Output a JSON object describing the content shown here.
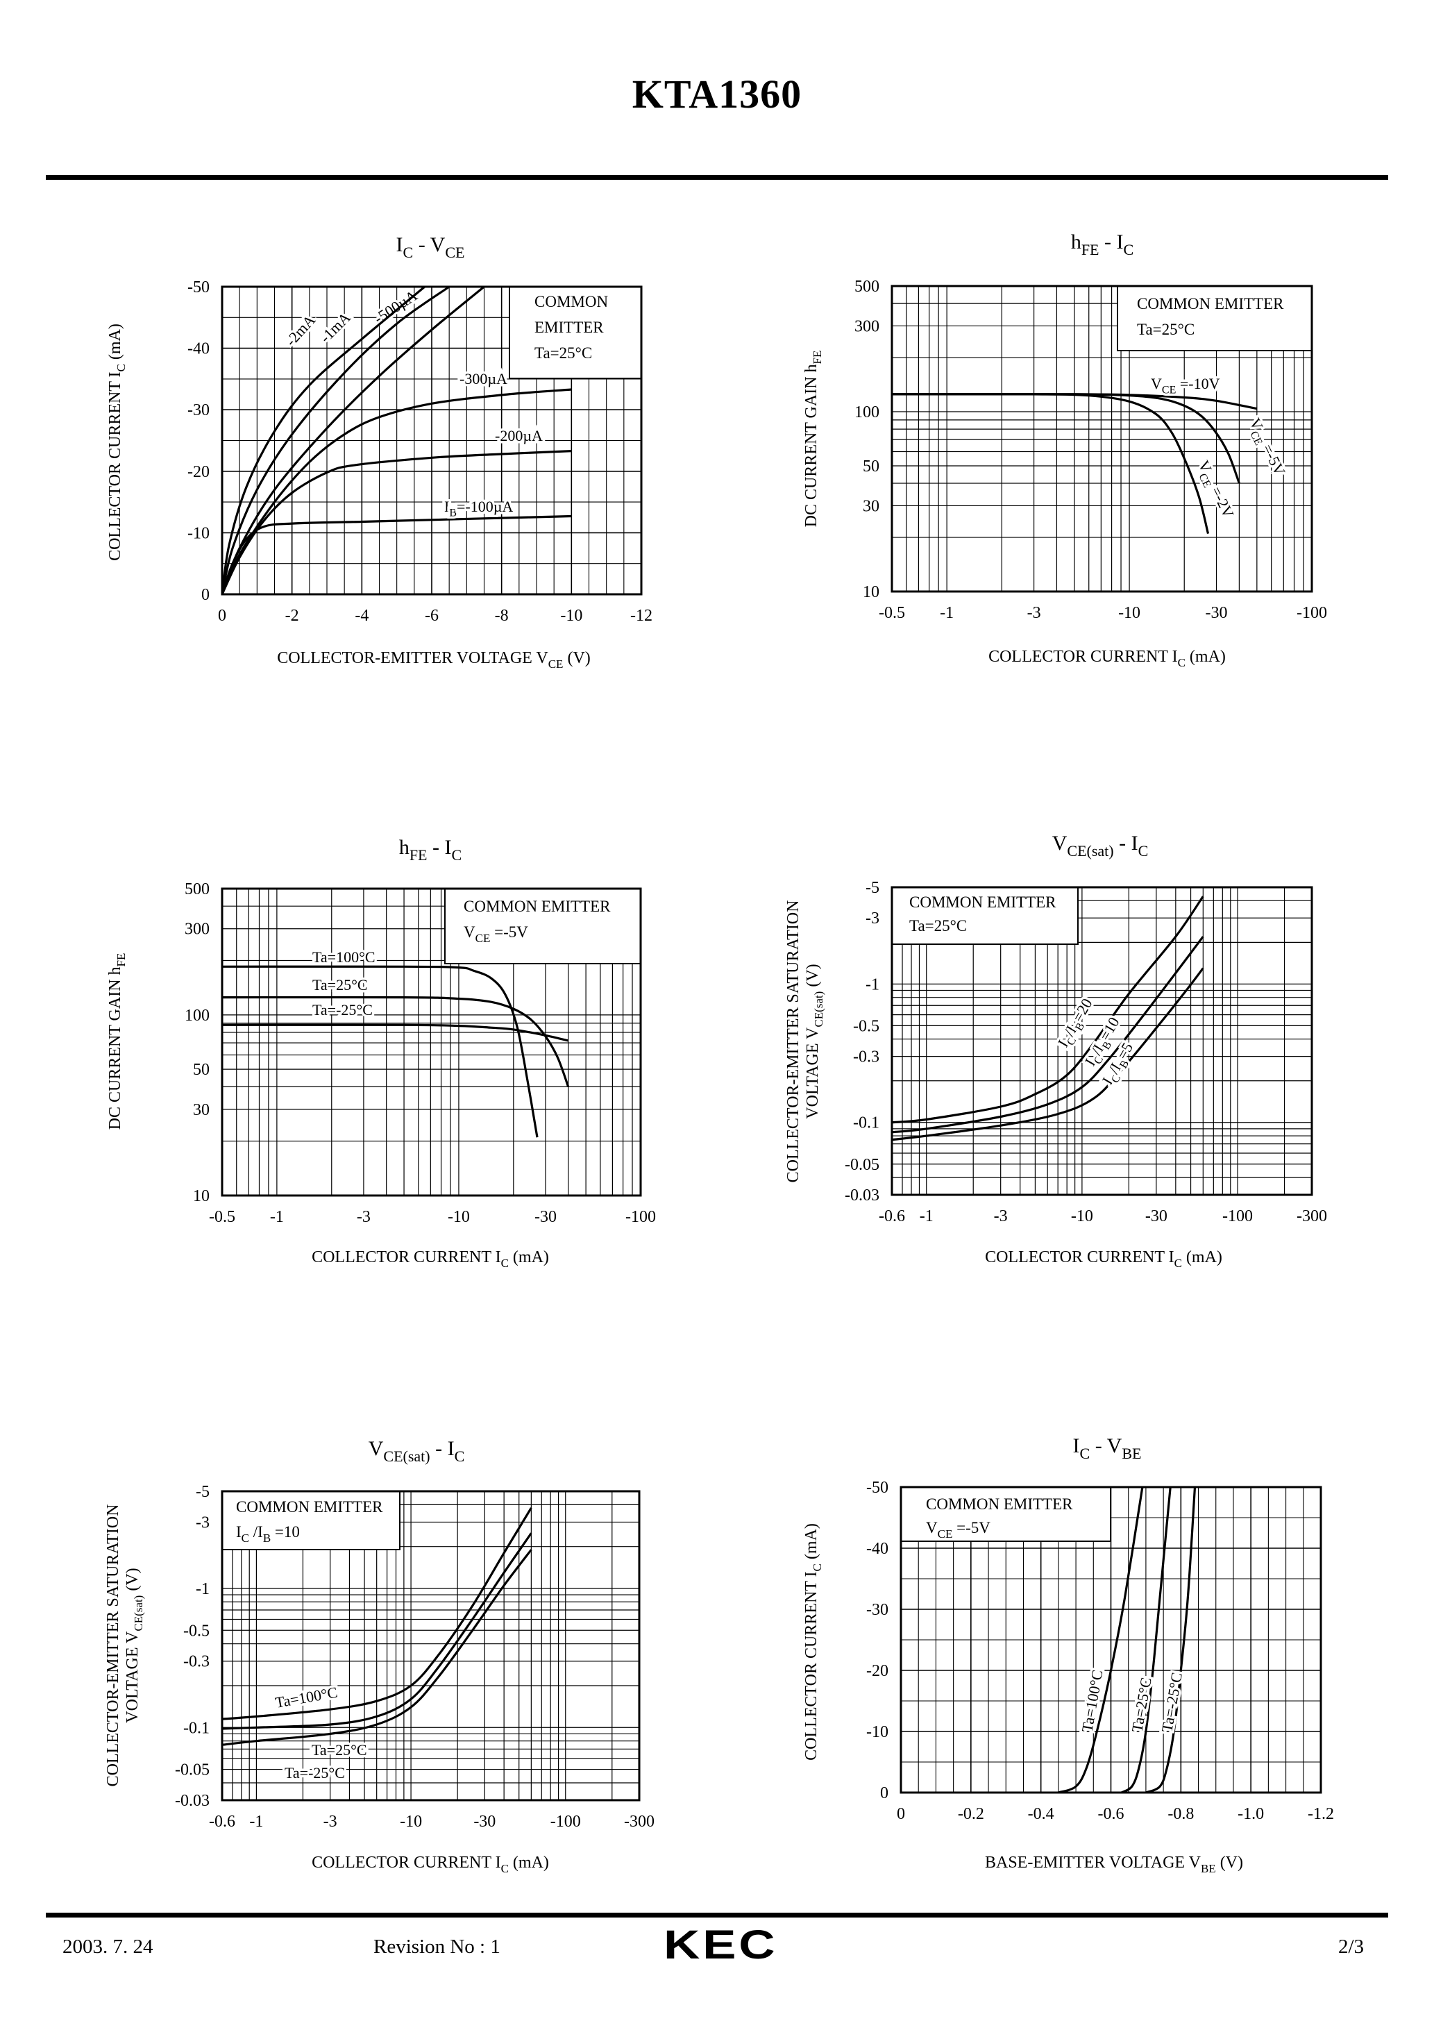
{
  "header": {
    "title": "KTA1360"
  },
  "footer": {
    "date": "2003. 7. 24",
    "revision": "Revision No : 1",
    "logo": "KEC",
    "page": "2/3"
  },
  "chart_data": [
    {
      "id": "c1",
      "type": "line",
      "title": "I_C - V_CE",
      "title_main": "I",
      "title_sub": "C",
      "title_mid": "  -  V",
      "title_sub2": "CE",
      "xlabel": "COLLECTOR-EMITTER VOLTAGE V",
      "xlabel_sub": "CE",
      "xlabel_unit": " (V)",
      "ylabel": "COLLECTOR CURRENT I",
      "ylabel_sub": "C",
      "ylabel_unit": "  (mA)",
      "xscale": "linear",
      "yscale": "linear",
      "xlim": [
        0,
        -12
      ],
      "ylim": [
        0,
        -50
      ],
      "xticks": [
        "0",
        "-2",
        "-4",
        "-6",
        "-8",
        "-10",
        "-12"
      ],
      "xtick_values": [
        0,
        -2,
        -4,
        -6,
        -8,
        -10,
        -12
      ],
      "yticks": [
        "0",
        "-10",
        "-20",
        "-30",
        "-40",
        "-50"
      ],
      "ytick_values": [
        0,
        -10,
        -20,
        -30,
        -40,
        -50
      ],
      "box_lines": [
        "COMMON",
        "EMITTER",
        "Ta=25°C"
      ],
      "series": [
        {
          "name": "IB=-100µA",
          "label": "I",
          "label_sub": "B",
          "label_rest": "=-100µA",
          "x": [
            0,
            -0.3,
            -0.7,
            -1.2,
            -2,
            -4,
            -6,
            -8,
            -10
          ],
          "y": [
            0,
            -5,
            -9,
            -11,
            -11.5,
            -11.8,
            -12.1,
            -12.4,
            -12.7
          ]
        },
        {
          "name": "-200µA",
          "label": "-200µA",
          "x": [
            0,
            -0.5,
            -1.2,
            -2,
            -3,
            -3.8,
            -6,
            -8,
            -10
          ],
          "y": [
            0,
            -6,
            -12,
            -16.5,
            -19.8,
            -21,
            -22.2,
            -22.8,
            -23.3
          ]
        },
        {
          "name": "-300µA",
          "label": "-300µA",
          "x": [
            0,
            -0.5,
            -1.5,
            -2.5,
            -3.5,
            -4.5,
            -6,
            -8,
            -10
          ],
          "y": [
            0,
            -6.5,
            -15,
            -21.5,
            -26,
            -28.8,
            -31,
            -32.4,
            -33.3
          ]
        },
        {
          "name": "-500µA",
          "label": "-500µA",
          "x": [
            0,
            -0.5,
            -1.5,
            -3,
            -4.5,
            -6,
            -7.5
          ],
          "y": [
            0,
            -7.5,
            -17,
            -27,
            -35.5,
            -43,
            -50
          ]
        },
        {
          "name": "-1mA",
          "label": "-1mA",
          "x": [
            0,
            -0.3,
            -1,
            -2,
            -3.5,
            -5,
            -6.5
          ],
          "y": [
            0,
            -7.5,
            -17,
            -26,
            -36,
            -44,
            -50
          ]
        },
        {
          "name": "-2mA",
          "label": "-2mA",
          "x": [
            0,
            -0.2,
            -0.7,
            -1.5,
            -2.5,
            -4,
            -5.8
          ],
          "y": [
            0,
            -8,
            -17.5,
            -26.5,
            -34,
            -41.5,
            -50
          ]
        }
      ]
    },
    {
      "id": "c2",
      "type": "line",
      "title": "hFE - IC",
      "title_main": "h",
      "title_sub": "FE",
      "title_mid": "  -  I",
      "title_sub2": "C",
      "xlabel": "COLLECTOR CURRENT I",
      "xlabel_sub": "C",
      "xlabel_unit": "  (mA)",
      "ylabel": "DC CURRENT GAIN h",
      "ylabel_sub": "FE",
      "ylabel_unit": "",
      "xscale": "log",
      "yscale": "log",
      "xlim": [
        0.5,
        100
      ],
      "ylim": [
        10,
        500
      ],
      "xticks": [
        "-0.5",
        "-1",
        "-3",
        "-10",
        "-30",
        "-100"
      ],
      "xtick_values": [
        0.5,
        1,
        3,
        10,
        30,
        100
      ],
      "yticks": [
        "10",
        "30",
        "50",
        "100",
        "300",
        "500"
      ],
      "ytick_values": [
        10,
        30,
        50,
        100,
        300,
        500
      ],
      "box_lines": [
        "COMMON EMITTER",
        "Ta=25°C"
      ],
      "series": [
        {
          "name": "VCE=-10V",
          "label": "V",
          "label_sub": "CE",
          "label_rest": " =-10V",
          "x": [
            0.5,
            5,
            10,
            20,
            30,
            50
          ],
          "y": [
            125,
            125,
            124,
            120,
            115,
            104
          ]
        },
        {
          "name": "VCE=-5V",
          "label": "V",
          "label_sub": "CE",
          "label_rest": " =-5V",
          "x": [
            0.5,
            5,
            10,
            15,
            20,
            25,
            30,
            35,
            40
          ],
          "y": [
            125,
            125,
            123,
            118,
            108,
            94,
            76,
            58,
            40
          ]
        },
        {
          "name": "VCE=-2V",
          "label": "V",
          "label_sub": "CE",
          "label_rest": " =-2V",
          "x": [
            0.5,
            3,
            6,
            10,
            14,
            17,
            20,
            24,
            27
          ],
          "y": [
            125,
            125,
            123,
            114,
            97,
            77,
            55,
            34,
            21
          ]
        }
      ]
    },
    {
      "id": "c3",
      "type": "line",
      "title": "hFE - IC",
      "title_main": "h",
      "title_sub": "FE",
      "title_mid": "  -  I",
      "title_sub2": "C",
      "xlabel": "COLLECTOR CURRENT I",
      "xlabel_sub": "C",
      "xlabel_unit": "  (mA)",
      "ylabel": "DC CURRENT GAIN h",
      "ylabel_sub": "FE",
      "ylabel_unit": "",
      "xscale": "log",
      "yscale": "log",
      "xlim": [
        0.5,
        100
      ],
      "ylim": [
        10,
        500
      ],
      "xticks": [
        "-0.5",
        "-1",
        "-3",
        "-10",
        "-30",
        "-100"
      ],
      "xtick_values": [
        0.5,
        1,
        3,
        10,
        30,
        100
      ],
      "yticks": [
        "10",
        "30",
        "50",
        "100",
        "300",
        "500"
      ],
      "ytick_values": [
        10,
        30,
        50,
        100,
        300,
        500
      ],
      "box_lines": [
        "COMMON EMITTER",
        "V_CE=-5V"
      ],
      "box_v": "V",
      "box_v_sub": "CE",
      "box_v_rest": " =-5V",
      "series": [
        {
          "name": "Ta=100°C",
          "label": "Ta=100°C",
          "x": [
            0.5,
            5,
            10,
            12,
            15,
            18,
            21,
            24,
            27
          ],
          "y": [
            185,
            185,
            183,
            176,
            160,
            130,
            85,
            42,
            21
          ]
        },
        {
          "name": "Ta=25°C",
          "label": "Ta=25°C",
          "x": [
            0.5,
            5,
            10,
            15,
            20,
            25,
            30,
            35,
            40
          ],
          "y": [
            125,
            125,
            123,
            118,
            108,
            94,
            76,
            58,
            40
          ]
        },
        {
          "name": "Ta=-25°C",
          "label": "Ta=-25°C",
          "x": [
            0.5,
            5,
            10,
            15,
            20,
            30,
            40
          ],
          "y": [
            88,
            88,
            87,
            85,
            83,
            77,
            72
          ]
        }
      ]
    },
    {
      "id": "c4",
      "type": "line",
      "title": "VCE(sat) - IC",
      "title_main": "V",
      "title_sub": "CE(sat)",
      "title_mid": "  -  I",
      "title_sub2": "C",
      "xlabel": "COLLECTOR CURRENT I",
      "xlabel_sub": "C",
      "xlabel_unit": "  (mA)",
      "ylabel": "COLLECTOR-EMITTER SATURATION",
      "ylabel2": "VOLTAGE V",
      "ylabel_sub": "CE(sat)",
      "ylabel_unit": "  (V)",
      "xscale": "log",
      "yscale": "log",
      "xlim": [
        0.6,
        300
      ],
      "ylim": [
        0.03,
        5
      ],
      "xticks": [
        "-0.6",
        "-1",
        "-3",
        "-10",
        "-30",
        "-100",
        "-300"
      ],
      "xtick_values": [
        0.6,
        1,
        3,
        10,
        30,
        100,
        300
      ],
      "yticks": [
        "-0.03",
        "-0.05",
        "-0.1",
        "-0.3",
        "-0.5",
        "-1",
        "-3",
        "-5"
      ],
      "ytick_values": [
        0.03,
        0.05,
        0.1,
        0.3,
        0.5,
        1,
        3,
        5
      ],
      "box_lines": [
        "COMMON EMITTER",
        "Ta=25°C"
      ],
      "series": [
        {
          "name": "IC/IB=20",
          "label": "I",
          "label_sub": "C",
          "label_rest": "/I",
          "label_sub2": "B",
          "label_rest2": "=20",
          "x": [
            0.6,
            1,
            3,
            5,
            8,
            12,
            20,
            40,
            60
          ],
          "y": [
            0.1,
            0.105,
            0.13,
            0.16,
            0.22,
            0.38,
            0.85,
            2.2,
            4.3
          ]
        },
        {
          "name": "IC/IB=10",
          "label": "I",
          "label_sub": "C",
          "label_rest": "/I",
          "label_sub2": "B",
          "label_rest2": "=10",
          "x": [
            0.6,
            1,
            3,
            6,
            10,
            15,
            25,
            40,
            60
          ],
          "y": [
            0.085,
            0.09,
            0.11,
            0.135,
            0.18,
            0.29,
            0.6,
            1.2,
            2.2
          ]
        },
        {
          "name": "IC/IB=5",
          "label": "I",
          "label_sub": "C",
          "label_rest": "/I",
          "label_sub2": "B",
          "label_rest2": "=5",
          "x": [
            0.6,
            1,
            3,
            7,
            12,
            18,
            30,
            45,
            60
          ],
          "y": [
            0.075,
            0.08,
            0.095,
            0.115,
            0.15,
            0.24,
            0.48,
            0.85,
            1.3
          ]
        }
      ]
    },
    {
      "id": "c5",
      "type": "line",
      "title": "VCE(sat) - IC",
      "title_main": "V",
      "title_sub": "CE(sat)",
      "title_mid": "  -  I",
      "title_sub2": "C",
      "xlabel": "COLLECTOR CURRENT I",
      "xlabel_sub": "C",
      "xlabel_unit": "  (mA)",
      "ylabel": "COLLECTOR-EMITTER SATURATION",
      "ylabel2": "VOLTAGE V",
      "ylabel_sub": "CE(sat)",
      "ylabel_unit": "  (V)",
      "xscale": "log",
      "yscale": "log",
      "xlim": [
        0.6,
        300
      ],
      "ylim": [
        0.03,
        5
      ],
      "xticks": [
        "-0.6",
        "-1",
        "-3",
        "-10",
        "-30",
        "-100",
        "-300"
      ],
      "xtick_values": [
        0.6,
        1,
        3,
        10,
        30,
        100,
        300
      ],
      "yticks": [
        "-0.03",
        "-0.05",
        "-0.1",
        "-0.3",
        "-0.5",
        "-1",
        "-3",
        "-5"
      ],
      "ytick_values": [
        0.03,
        0.05,
        0.1,
        0.3,
        0.5,
        1,
        3,
        5
      ],
      "box_lines": [
        "COMMON EMITTER",
        "IC/IB=10"
      ],
      "box_i": "I",
      "box_i_sub": "C",
      "box_i_rest": " /I",
      "box_i_sub2": "B",
      "box_i_rest2": " =10",
      "series": [
        {
          "name": "Ta=100°C",
          "label": "Ta=100°C",
          "x": [
            0.6,
            1,
            3,
            6,
            10,
            15,
            25,
            40,
            60
          ],
          "y": [
            0.115,
            0.12,
            0.135,
            0.155,
            0.2,
            0.33,
            0.75,
            1.8,
            3.8
          ]
        },
        {
          "name": "Ta=25°C",
          "label": "Ta=25°C",
          "x": [
            0.6,
            1,
            3,
            6,
            10,
            15,
            25,
            40,
            60
          ],
          "y": [
            0.098,
            0.1,
            0.105,
            0.12,
            0.16,
            0.27,
            0.6,
            1.3,
            2.5
          ]
        },
        {
          "name": "Ta=-25°C",
          "label": "Ta=-25°C",
          "x": [
            0.6,
            1,
            3,
            6,
            10,
            15,
            25,
            40,
            60
          ],
          "y": [
            0.075,
            0.08,
            0.09,
            0.105,
            0.14,
            0.23,
            0.5,
            1.05,
            1.9
          ]
        }
      ]
    },
    {
      "id": "c6",
      "type": "line",
      "title": "IC - VBE",
      "title_main": "I",
      "title_sub": "C",
      "title_mid": "  -  V",
      "title_sub2": "BE",
      "xlabel": "BASE-EMITTER VOLTAGE V",
      "xlabel_sub": "BE",
      "xlabel_unit": "  (V)",
      "ylabel": "COLLECTOR CURRENT I",
      "ylabel_sub": "C",
      "ylabel_unit": "  (mA)",
      "xscale": "linear",
      "yscale": "linear",
      "xlim": [
        0,
        -1.2
      ],
      "ylim": [
        0,
        -50
      ],
      "xticks": [
        "0",
        "-0.2",
        "-0.4",
        "-0.6",
        "-0.8",
        "-1.0",
        "-1.2"
      ],
      "xtick_values": [
        0,
        -0.2,
        -0.4,
        -0.6,
        -0.8,
        -1.0,
        -1.2
      ],
      "yticks": [
        "0",
        "-10",
        "-20",
        "-30",
        "-40",
        "-50"
      ],
      "ytick_values": [
        0,
        -10,
        -20,
        -30,
        -40,
        -50
      ],
      "box_lines": [
        "COMMON EMITTER",
        "V_CE=-5V"
      ],
      "box_v": "V",
      "box_v_sub": "CE",
      "box_v_rest": " =-5V",
      "series": [
        {
          "name": "Ta=100°C",
          "label": "Ta=100°C",
          "x": [
            -0.45,
            -0.5,
            -0.53,
            -0.56,
            -0.6,
            -0.64,
            -0.69
          ],
          "y": [
            0,
            -1,
            -4,
            -10,
            -20,
            -32,
            -50
          ]
        },
        {
          "name": "Ta=25°C",
          "label": "Ta=25°C",
          "x": [
            -0.63,
            -0.66,
            -0.68,
            -0.7,
            -0.72,
            -0.74,
            -0.77
          ],
          "y": [
            0,
            -1,
            -4,
            -10,
            -20,
            -32,
            -50
          ]
        },
        {
          "name": "Ta=-25°C",
          "label": "Ta=-25°C",
          "x": [
            -0.7,
            -0.74,
            -0.76,
            -0.78,
            -0.8,
            -0.82,
            -0.84
          ],
          "y": [
            0,
            -1,
            -4,
            -10,
            -20,
            -32,
            -50
          ]
        }
      ]
    }
  ]
}
